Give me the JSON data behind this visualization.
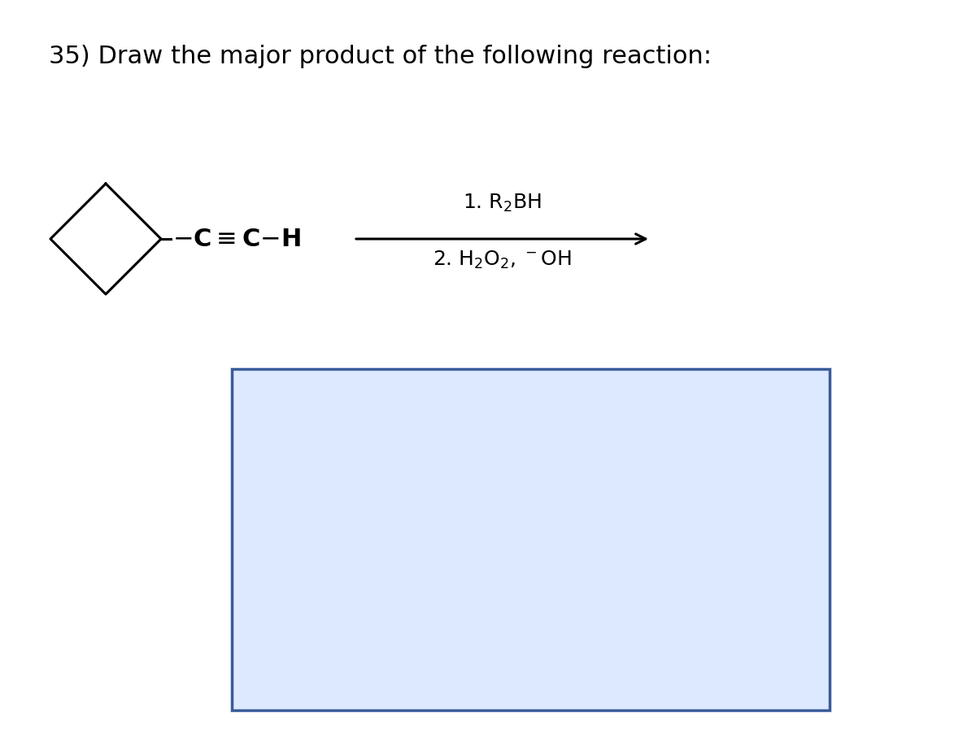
{
  "title": "35) Draw the major product of the following reaction:",
  "title_fontsize": 22,
  "background_color": "#ffffff",
  "answer_box_facecolor": "#dce9ff",
  "answer_box_edgecolor": "#3a5a9a",
  "chem_fontsize": 22,
  "cond_fontsize": 18
}
